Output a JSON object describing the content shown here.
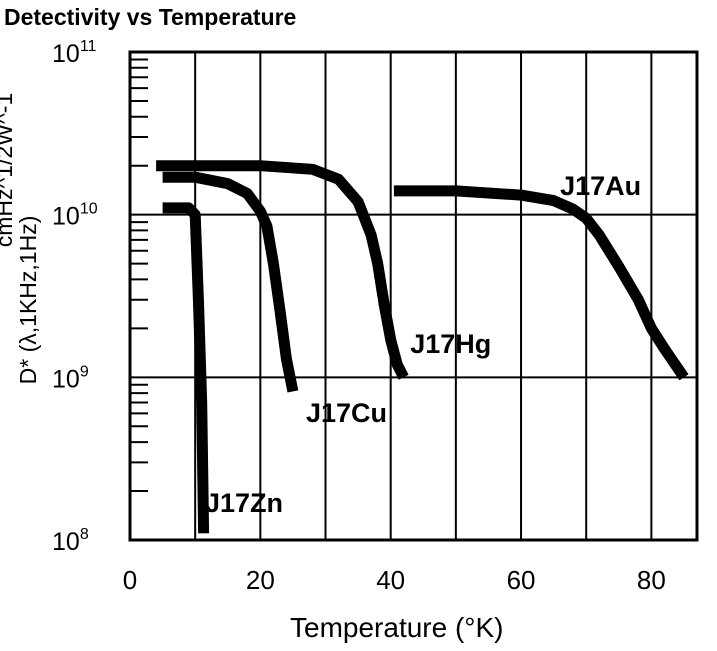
{
  "chart_data": {
    "type": "line",
    "title": "Detectivity vs Temperature",
    "xlabel": "Temperature (°K)",
    "ylabel_lines": [
      "D* (λ,1KHz,1Hz)",
      "cmHz^1/2W^-1"
    ],
    "xlim": [
      0,
      87
    ],
    "ylim": [
      100000000,
      100000000000
    ],
    "yscale": "log",
    "x_ticks": [
      0,
      20,
      40,
      60,
      80
    ],
    "x_tick_labels": [
      "0",
      "20",
      "40",
      "60",
      "80"
    ],
    "y_ticks": [
      100000000,
      1000000000,
      10000000000,
      100000000000
    ],
    "y_tick_labels": [
      {
        "base": "10",
        "exp": "8"
      },
      {
        "base": "10",
        "exp": "9"
      },
      {
        "base": "10",
        "exp": "10"
      },
      {
        "base": "10",
        "exp": "11"
      }
    ],
    "grid": true,
    "series": [
      {
        "name": "J17Zn",
        "x": [
          5,
          9,
          10,
          10.5,
          11,
          11.2,
          11.3
        ],
        "y": [
          11000000000,
          11000000000,
          10000000000,
          3000000000,
          700000000,
          200000000,
          110000000
        ]
      },
      {
        "name": "J17Cu",
        "x": [
          5,
          10,
          15,
          18,
          20,
          21,
          22,
          23,
          24,
          25
        ],
        "y": [
          17000000000,
          17000000000,
          15500000000,
          13500000000,
          10500000000,
          8500000000,
          5000000000,
          2600000000,
          1300000000,
          820000000
        ]
      },
      {
        "name": "J17Hg",
        "x": [
          4,
          10,
          20,
          28,
          32,
          35,
          37,
          38,
          39,
          40,
          41,
          42
        ],
        "y": [
          20000000000,
          20000000000,
          20000000000,
          19000000000,
          16500000000,
          12000000000,
          7500000000,
          5000000000,
          2800000000,
          1700000000,
          1200000000,
          1000000000
        ]
      },
      {
        "name": "J17Au",
        "x": [
          40.5,
          50,
          60,
          65,
          68,
          70,
          72,
          75,
          78,
          80,
          82,
          85
        ],
        "y": [
          14000000000,
          14000000000,
          13200000000,
          12200000000,
          10800000000,
          9500000000,
          7500000000,
          4800000000,
          3000000000,
          2000000000,
          1500000000,
          1000000000
        ]
      }
    ]
  },
  "style": {
    "line_color": "#000000",
    "background": "#ffffff"
  }
}
